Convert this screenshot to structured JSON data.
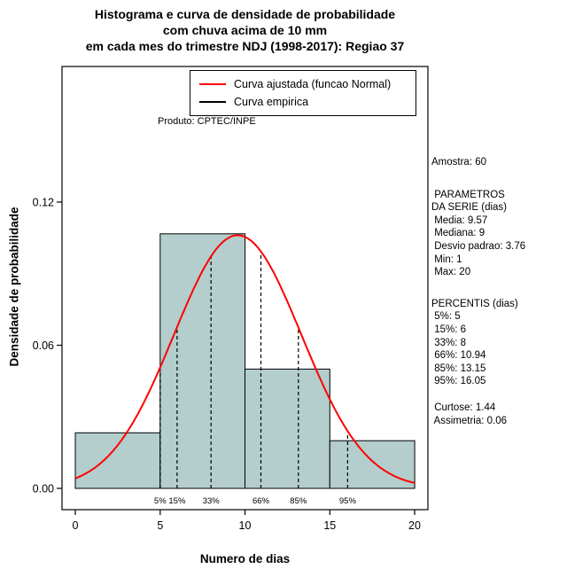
{
  "title": {
    "line1": "Histograma e curva de densidade de probabilidade",
    "line2": "com chuva acima de 10 mm",
    "line3": "em cada mes do trimestre NDJ (1998-2017): Regiao 37"
  },
  "legend": {
    "fitted_label": "Curva ajustada (funcao Normal)",
    "empirical_label": "Curva empirica"
  },
  "product_label": "Produto: CPTEC/INPE",
  "stats": {
    "amostra": "Amostra: 60",
    "param_header1": " PARAMETROS",
    "param_header2": "DA SERIE (dias)",
    "media": " Media: 9.57",
    "mediana": " Mediana: 9",
    "desvio": " Desvio padrao: 3.76",
    "min": " Min: 1",
    "max": " Max: 20",
    "percentis_header": "PERCENTIS (dias)",
    "p5": " 5%: 5",
    "p15": " 15%: 6",
    "p33": " 33%: 8",
    "p66": " 66%: 10.94",
    "p85": " 85%: 13.15",
    "p95": " 95%: 16.05",
    "curtose": " Curtose: 1.44",
    "assimetria": " Assimetria: 0.06"
  },
  "axes": {
    "xlabel": "Numero de dias",
    "ylabel": "Densidade de probabilidade"
  },
  "chart_data": {
    "type": "bar",
    "title": "Histograma e curva de densidade de probabilidade\ncom chuva acima de 10 mm\nem cada mes do trimestre NDJ (1998-2017): Regiao 37",
    "xlabel": "Numero de dias",
    "ylabel": "Densidade de probabilidade",
    "xlim": [
      0,
      20
    ],
    "ylim": [
      0,
      0.177
    ],
    "x_ticks": [
      0,
      5,
      10,
      15,
      20
    ],
    "y_ticks": [
      0,
      0.06,
      0.12
    ],
    "grid": false,
    "legend_position": "top-right",
    "histogram": {
      "bin_edges": [
        0,
        5,
        10,
        15,
        20
      ],
      "densities": [
        0.0233,
        0.1067,
        0.05,
        0.02
      ],
      "fill": "#b4cdcd",
      "stroke": "#000000"
    },
    "normal_curve": {
      "mean": 9.57,
      "sd": 3.76,
      "color": "#ff0000"
    },
    "sample_size": 60,
    "series_stats": {
      "media": 9.57,
      "mediana": 9,
      "desvio_padrao": 3.76,
      "min": 1,
      "max": 20,
      "curtose": 1.44,
      "assimetria": 0.06
    },
    "percentiles": [
      {
        "label": "5%",
        "x": 5
      },
      {
        "label": "15%",
        "x": 6
      },
      {
        "label": "33%",
        "x": 8
      },
      {
        "label": "66%",
        "x": 10.94
      },
      {
        "label": "85%",
        "x": 13.15
      },
      {
        "label": "95%",
        "x": 16.05
      }
    ]
  },
  "colors": {
    "curve": "#ff0000",
    "bar_fill": "#b4cdcd",
    "axis": "#000000"
  }
}
